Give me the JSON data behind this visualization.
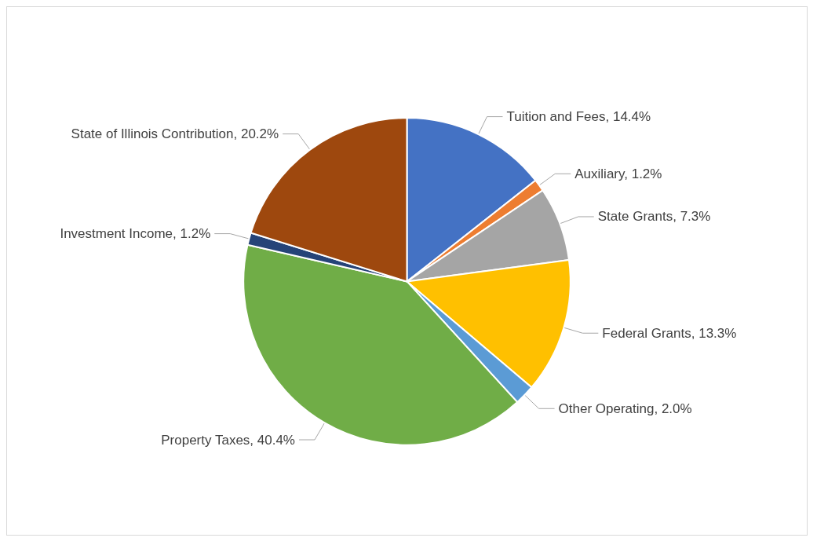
{
  "chart_data": {
    "type": "pie",
    "categories": [
      "Tuition and Fees",
      "Auxiliary",
      "State Grants",
      "Federal Grants",
      "Other Operating",
      "Property Taxes",
      "Investment Income",
      "State of Illinois Contribution"
    ],
    "values": [
      14.4,
      1.2,
      7.3,
      13.3,
      2.0,
      40.4,
      1.2,
      20.2
    ],
    "value_labels": [
      "14.4%",
      "1.2%",
      "7.3%",
      "13.3%",
      "2.0%",
      "40.4%",
      "1.2%",
      "20.2%"
    ],
    "colors": [
      "#4472c4",
      "#ed7d31",
      "#a5a5a5",
      "#ffc000",
      "#5b9bd5",
      "#70ad47",
      "#264478",
      "#9e480e"
    ]
  }
}
